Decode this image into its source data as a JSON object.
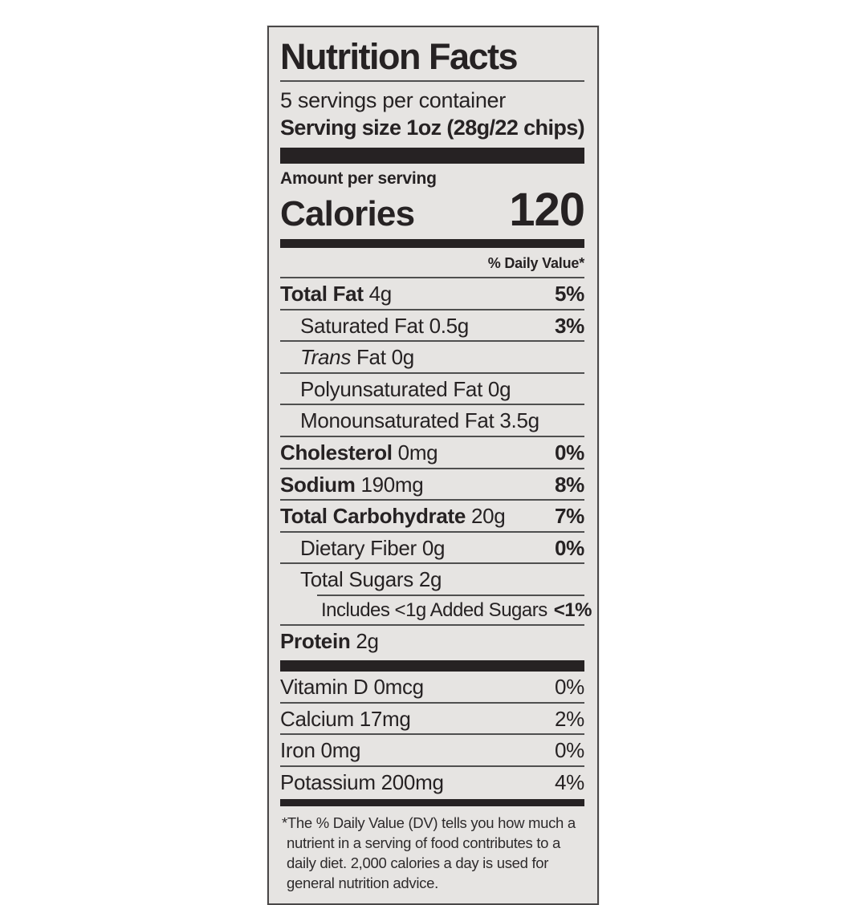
{
  "colors": {
    "background": "#ffffff",
    "label_bg": "#e6e4e2",
    "ink": "#262223",
    "hairline": "#4f4f4f"
  },
  "label": {
    "title": "Nutrition Facts",
    "servings_per_container": "5 servings per container",
    "serving_size": "Serving size 1oz (28g/22 chips)",
    "amount_per_serving": "Amount per serving",
    "calories_label": "Calories",
    "calories_value": "120",
    "daily_value_header": "% Daily Value*",
    "nutrients": [
      {
        "name": "Total Fat",
        "amount": "4g",
        "dv": "5%",
        "bold": true,
        "indent": 0
      },
      {
        "name": "Saturated Fat",
        "amount": "0.5g",
        "dv": "3%",
        "indent": 1
      },
      {
        "italic": "Trans",
        "name": "Fat",
        "amount": "0g",
        "indent": 1
      },
      {
        "name": "Polyunsaturated Fat",
        "amount": "0g",
        "indent": 1
      },
      {
        "name": "Monounsaturated Fat",
        "amount": "3.5g",
        "indent": 1
      },
      {
        "name": "Cholesterol",
        "amount": "0mg",
        "dv": "0%",
        "bold": true,
        "indent": 0
      },
      {
        "name": "Sodium",
        "amount": "190mg",
        "dv": "8%",
        "bold": true,
        "indent": 0
      },
      {
        "name": "Total Carbohydrate",
        "amount": "20g",
        "dv": "7%",
        "bold": true,
        "indent": 0
      },
      {
        "name": "Dietary Fiber",
        "amount": "0g",
        "dv": "0%",
        "indent": 1
      },
      {
        "name": "Total Sugars",
        "amount": "2g",
        "indent": 1
      },
      {
        "name": "Includes <1g Added Sugars",
        "dv": "<1%",
        "indent": 2,
        "tight": true
      },
      {
        "name": "Protein",
        "amount": "2g",
        "bold": true,
        "indent": 0
      }
    ],
    "vitamins": [
      {
        "name": "Vitamin D",
        "amount": "0mcg",
        "dv": "0%"
      },
      {
        "name": "Calcium",
        "amount": "17mg",
        "dv": "2%"
      },
      {
        "name": "Iron",
        "amount": "0mg",
        "dv": "0%"
      },
      {
        "name": "Potassium",
        "amount": "200mg",
        "dv": "4%"
      }
    ],
    "footnote": "*The % Daily Value (DV) tells you how much a nutrient in a serving of food contributes to a daily diet. 2,000 calories a day is used for general nutrition advice."
  }
}
